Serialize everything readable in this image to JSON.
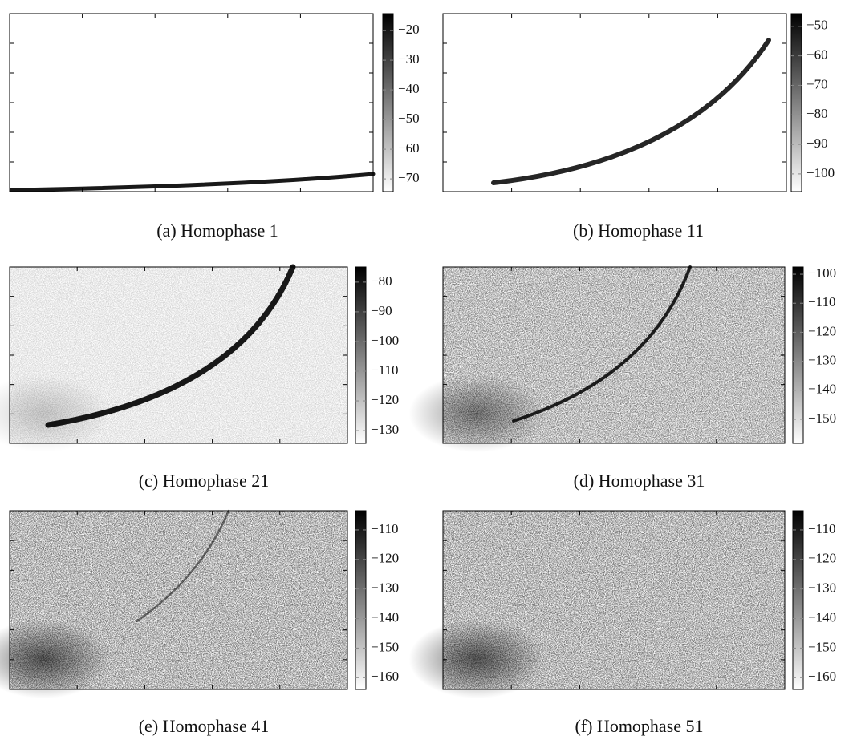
{
  "panels": [
    {
      "caption": "(a) Homophase 1",
      "colorbar": {
        "lim": [
          -74.3,
          -14.3
        ],
        "ticks": [
          {
            "value": -20,
            "label": "−20"
          },
          {
            "value": -30,
            "label": "−30"
          },
          {
            "value": -40,
            "label": "−40"
          },
          {
            "value": -50,
            "label": "−50"
          },
          {
            "value": -60,
            "label": "−60"
          },
          {
            "value": -70,
            "label": "−70"
          }
        ]
      }
    },
    {
      "caption": "(b) Homophase 11",
      "colorbar": {
        "lim": [
          -106,
          -45.7
        ],
        "ticks": [
          {
            "value": -50,
            "label": "−50"
          },
          {
            "value": -60,
            "label": "−60"
          },
          {
            "value": -70,
            "label": "−70"
          },
          {
            "value": -80,
            "label": "−80"
          },
          {
            "value": -90,
            "label": "−90"
          },
          {
            "value": -100,
            "label": "−100"
          }
        ]
      }
    },
    {
      "caption": "(c) Homophase 21",
      "colorbar": {
        "lim": [
          -134.3,
          -74.9
        ],
        "ticks": [
          {
            "value": -80,
            "label": "−80"
          },
          {
            "value": -90,
            "label": "−90"
          },
          {
            "value": -100,
            "label": "−100"
          },
          {
            "value": -110,
            "label": "−110"
          },
          {
            "value": -120,
            "label": "−120"
          },
          {
            "value": -130,
            "label": "−130"
          }
        ]
      }
    },
    {
      "caption": "(d) Homophase 31",
      "colorbar": {
        "lim": [
          -158.3,
          -97.5
        ],
        "ticks": [
          {
            "value": -100,
            "label": "−100"
          },
          {
            "value": -110,
            "label": "−110"
          },
          {
            "value": -120,
            "label": "−120"
          },
          {
            "value": -130,
            "label": "−130"
          },
          {
            "value": -140,
            "label": "−140"
          },
          {
            "value": -150,
            "label": "−150"
          }
        ]
      }
    },
    {
      "caption": "(e) Homophase 41",
      "colorbar": {
        "lim": [
          -164,
          -103.5
        ],
        "ticks": [
          {
            "value": -110,
            "label": "−110"
          },
          {
            "value": -120,
            "label": "−120"
          },
          {
            "value": -130,
            "label": "−130"
          },
          {
            "value": -140,
            "label": "−140"
          },
          {
            "value": -150,
            "label": "−150"
          },
          {
            "value": -160,
            "label": "−160"
          }
        ]
      }
    },
    {
      "caption": "(f) Homophase 51",
      "colorbar": {
        "lim": [
          -164,
          -103.5
        ],
        "ticks": [
          {
            "value": -110,
            "label": "−110"
          },
          {
            "value": -120,
            "label": "−120"
          },
          {
            "value": -130,
            "label": "−130"
          },
          {
            "value": -140,
            "label": "−140"
          },
          {
            "value": -150,
            "label": "−150"
          },
          {
            "value": -160,
            "label": "−160"
          }
        ]
      }
    }
  ]
}
